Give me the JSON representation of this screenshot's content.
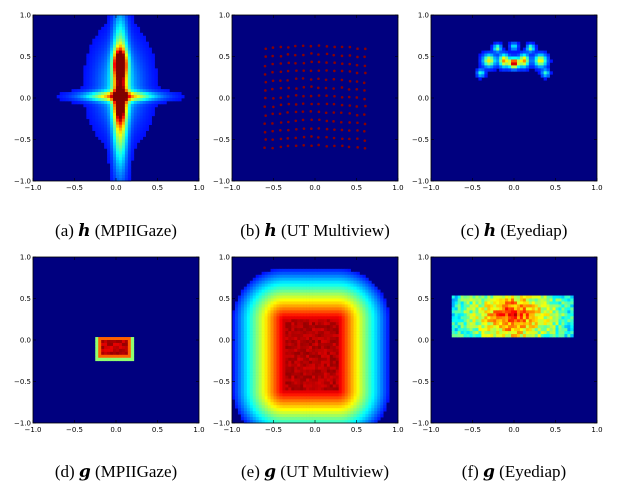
{
  "chart_data": [
    {
      "type": "heatmap",
      "panel": "(a)",
      "symbol": "h",
      "dataset": "MPIIGaze",
      "caption": "(a) h (MPIIGaze)",
      "xlim": [
        -1.0,
        1.0
      ],
      "ylim": [
        -1.0,
        1.0
      ],
      "xticks": [
        "−1.0",
        "−0.5",
        "0.0",
        "0.5",
        "1.0"
      ],
      "yticks": [
        "−1.0",
        "−0.5",
        "0.0",
        "0.5",
        "1.0"
      ],
      "pattern": "cross",
      "center": [
        0.05,
        0.4
      ],
      "extent": [
        0.15,
        0.6
      ],
      "background": "#00007f"
    },
    {
      "type": "scatter",
      "panel": "(b)",
      "symbol": "h",
      "dataset": "UT Multiview",
      "caption": "(b) h (UT Multiview)",
      "xlim": [
        -1.0,
        1.0
      ],
      "ylim": [
        -1.0,
        1.0
      ],
      "xticks": [
        "−1.0",
        "−0.5",
        "0.0",
        "0.5",
        "1.0"
      ],
      "yticks": [
        "−1.0",
        "−0.5",
        "0.0",
        "0.5",
        "1.0"
      ],
      "pattern": "grid",
      "grid_x": [
        -0.6,
        0.6
      ],
      "grid_y": [
        -0.6,
        0.6
      ],
      "grid_size": [
        14,
        13
      ],
      "point_color": "#8b0000",
      "background": "#00007f"
    },
    {
      "type": "heatmap",
      "panel": "(c)",
      "symbol": "h",
      "dataset": "Eyediap",
      "caption": "(c) h (Eyediap)",
      "xlim": [
        -1.0,
        1.0
      ],
      "ylim": [
        -1.0,
        1.0
      ],
      "xticks": [
        "−1.0",
        "−0.5",
        "0.0",
        "0.5",
        "1.0"
      ],
      "yticks": [
        "−1.0",
        "−0.5",
        "0.0",
        "0.5",
        "1.0"
      ],
      "pattern": "clusters",
      "center": [
        0.0,
        0.42
      ],
      "background": "#00007f"
    },
    {
      "type": "heatmap",
      "panel": "(d)",
      "symbol": "g",
      "dataset": "MPIIGaze",
      "caption": "(d) g (MPIIGaze)",
      "xlim": [
        -1.0,
        1.0
      ],
      "ylim": [
        -1.0,
        1.0
      ],
      "xticks": [
        "−1.0",
        "−0.5",
        "0.0",
        "0.5",
        "1.0"
      ],
      "yticks": [
        "−1.0",
        "−0.5",
        "0.0",
        "0.5",
        "1.0"
      ],
      "pattern": "box",
      "box_x": [
        -0.25,
        0.2
      ],
      "box_y": [
        -0.25,
        0.05
      ],
      "background": "#00007f"
    },
    {
      "type": "heatmap",
      "panel": "(e)",
      "symbol": "g",
      "dataset": "UT Multiview",
      "caption": "(e) g (UT Multiview)",
      "xlim": [
        -1.0,
        1.0
      ],
      "ylim": [
        -1.0,
        1.0
      ],
      "xticks": [
        "−1.0",
        "−0.5",
        "0.0",
        "0.5",
        "1.0"
      ],
      "yticks": [
        "−1.0",
        "−0.5",
        "0.0",
        "0.5",
        "1.0"
      ],
      "pattern": "wide",
      "box_x": [
        -0.55,
        0.45
      ],
      "box_y": [
        -0.75,
        0.4
      ],
      "background": "#00007f"
    },
    {
      "type": "heatmap",
      "panel": "(f)",
      "symbol": "g",
      "dataset": "Eyediap",
      "caption": "(f) g (Eyediap)",
      "xlim": [
        -1.0,
        1.0
      ],
      "ylim": [
        -1.0,
        1.0
      ],
      "xticks": [
        "−1.0",
        "−0.5",
        "0.0",
        "0.5",
        "1.0"
      ],
      "yticks": [
        "−1.0",
        "−0.5",
        "0.0",
        "0.5",
        "1.0"
      ],
      "pattern": "band",
      "box_x": [
        -0.75,
        0.7
      ],
      "box_y": [
        0.05,
        0.55
      ],
      "background": "#00007f"
    }
  ]
}
